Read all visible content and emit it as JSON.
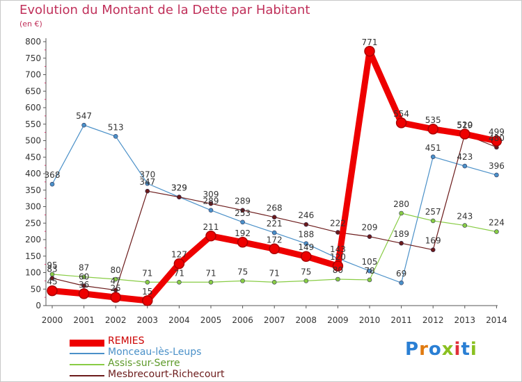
{
  "title": "Evolution du Montant de la Dette par Habitant",
  "subtitle": "(en €)",
  "logo": "Proxiti",
  "chart_data": {
    "type": "line",
    "title": "Evolution du Montant de la Dette par Habitant",
    "ylabel": "(en €)",
    "x": [
      "2000",
      "2001",
      "2002",
      "2003",
      "2004",
      "2005",
      "2006",
      "2007",
      "2008",
      "2009",
      "2010",
      "2011",
      "2012",
      "2013",
      "2014"
    ],
    "ylim": [
      0,
      800
    ],
    "yticks": [
      0,
      50,
      100,
      150,
      200,
      250,
      300,
      350,
      400,
      450,
      500,
      550,
      600,
      650,
      700,
      750,
      800
    ],
    "grid": false,
    "legend": "bottom-left",
    "series": [
      {
        "name": "REMIES",
        "color": "#ee0000",
        "values": [
          45,
          36,
          25,
          15,
          127,
          211,
          192,
          172,
          149,
          120,
          771,
          554,
          535,
          520,
          499
        ]
      },
      {
        "name": "Monceau-lès-Leups",
        "color": "#4a90c8",
        "values": [
          368,
          547,
          513,
          370,
          329,
          289,
          253,
          221,
          188,
          143,
          105,
          69,
          451,
          423,
          396
        ]
      },
      {
        "name": "Assis-sur-Serre",
        "color": "#88cc44",
        "values": [
          95,
          87,
          80,
          71,
          71,
          71,
          75,
          71,
          75,
          80,
          78,
          280,
          257,
          243,
          224
        ]
      },
      {
        "name": "Mesbrecourt-Richecourt",
        "color": "#6b1a1a",
        "values": [
          83,
          60,
          47,
          347,
          329,
          309,
          289,
          268,
          246,
          222,
          209,
          189,
          169,
          519,
          480
        ]
      }
    ]
  }
}
